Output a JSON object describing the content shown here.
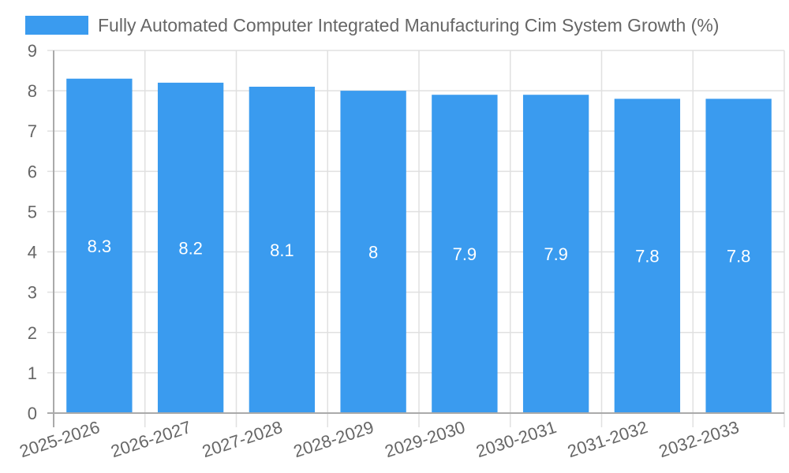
{
  "legend": {
    "label": "Fully Automated Computer Integrated Manufacturing  Cim  System Growth (%)",
    "color": "#3a9bef"
  },
  "chart_data": {
    "type": "bar",
    "title": "",
    "xlabel": "",
    "ylabel": "",
    "categories": [
      "2025-2026",
      "2026-2027",
      "2027-2028",
      "2028-2029",
      "2029-2030",
      "2030-2031",
      "2031-2032",
      "2032-2033"
    ],
    "series": [
      {
        "name": "Fully Automated Computer Integrated Manufacturing  Cim  System Growth (%)",
        "values": [
          8.3,
          8.2,
          8.1,
          8,
          7.9,
          7.9,
          7.8,
          7.8
        ],
        "color": "#3a9bef"
      }
    ],
    "data_labels": [
      "8.3",
      "8.2",
      "8.1",
      "8",
      "7.9",
      "7.9",
      "7.8",
      "7.8"
    ],
    "ylim": [
      0,
      9
    ],
    "yticks": [
      0,
      1,
      2,
      3,
      4,
      5,
      6,
      7,
      8,
      9
    ],
    "grid": true,
    "legend_position": "top"
  }
}
